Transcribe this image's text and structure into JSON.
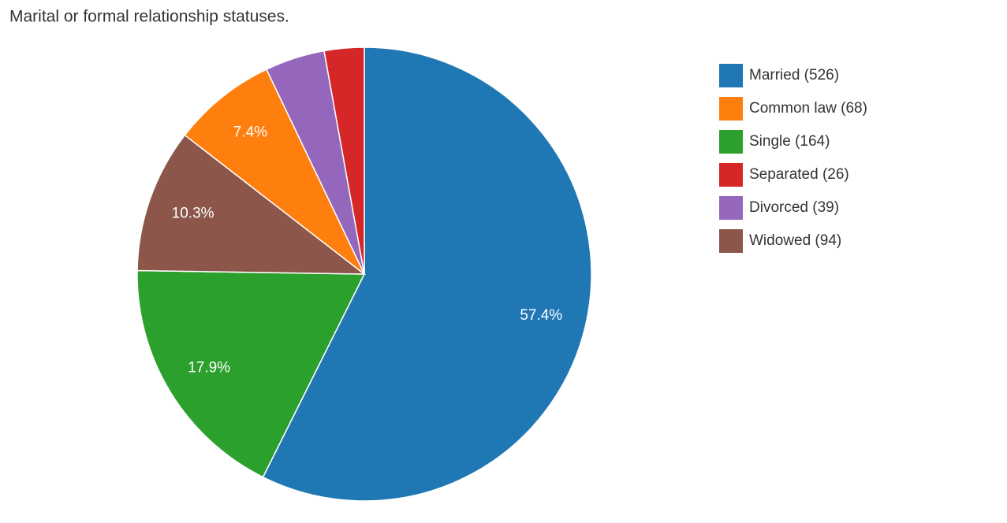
{
  "chart_data": {
    "type": "pie",
    "title": "Marital or formal relationship statuses.",
    "labels": [
      "Married (526)",
      "Common law (68)",
      "Single (164)",
      "Separated (26)",
      "Divorced (39)",
      "Widowed (94)"
    ],
    "values": [
      526,
      68,
      164,
      26,
      39,
      94
    ],
    "percent": [
      57.4,
      7.4,
      17.9,
      null,
      null,
      10.3
    ],
    "percent_labels": [
      "57.4%",
      "7.4%",
      "17.9%",
      null,
      null,
      "10.3%"
    ],
    "colors": [
      "#1f77b4",
      "#ff7f0e",
      "#2ca02c",
      "#d62728",
      "#9467bd",
      "#8c564b"
    ],
    "slice_order": "descending",
    "legend": "right"
  }
}
